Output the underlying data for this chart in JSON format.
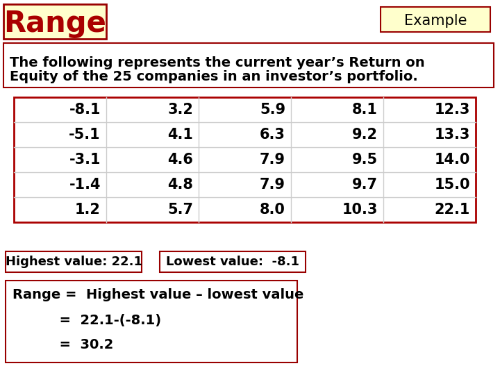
{
  "title": "Range",
  "subtitle": "Example",
  "description_line1": "The following represents the current year’s Return on",
  "description_line2": "Equity of the 25 companies in an investor’s portfolio.",
  "table_data": [
    [
      "-8.1",
      "3.2",
      "5.9",
      "8.1",
      "12.3"
    ],
    [
      "-5.1",
      "4.1",
      "6.3",
      "9.2",
      "13.3"
    ],
    [
      "-3.1",
      "4.6",
      "7.9",
      "9.5",
      "14.0"
    ],
    [
      "-1.4",
      "4.8",
      "7.9",
      "9.7",
      "15.0"
    ],
    [
      "1.2",
      "5.7",
      "8.0",
      "10.3",
      "22.1"
    ]
  ],
  "highest_label": "Highest value: 22.1",
  "lowest_label": "Lowest value:  -8.1",
  "range_line1": "Range =  Highest value – lowest value",
  "range_line2": "          =  22.1-(-8.1)",
  "range_line3": "          =  30.2",
  "bg_color": "#FFFFFF",
  "title_color": "#AA0000",
  "title_bg": "#FFFFCC",
  "box_border": "#990000",
  "table_border_outer": "#AA0000",
  "table_border_inner": "#CCCCCC",
  "text_color": "#000000",
  "font_size_title": 30,
  "font_size_subtitle": 15,
  "font_size_desc": 14,
  "font_size_table": 15,
  "font_size_notes": 13
}
